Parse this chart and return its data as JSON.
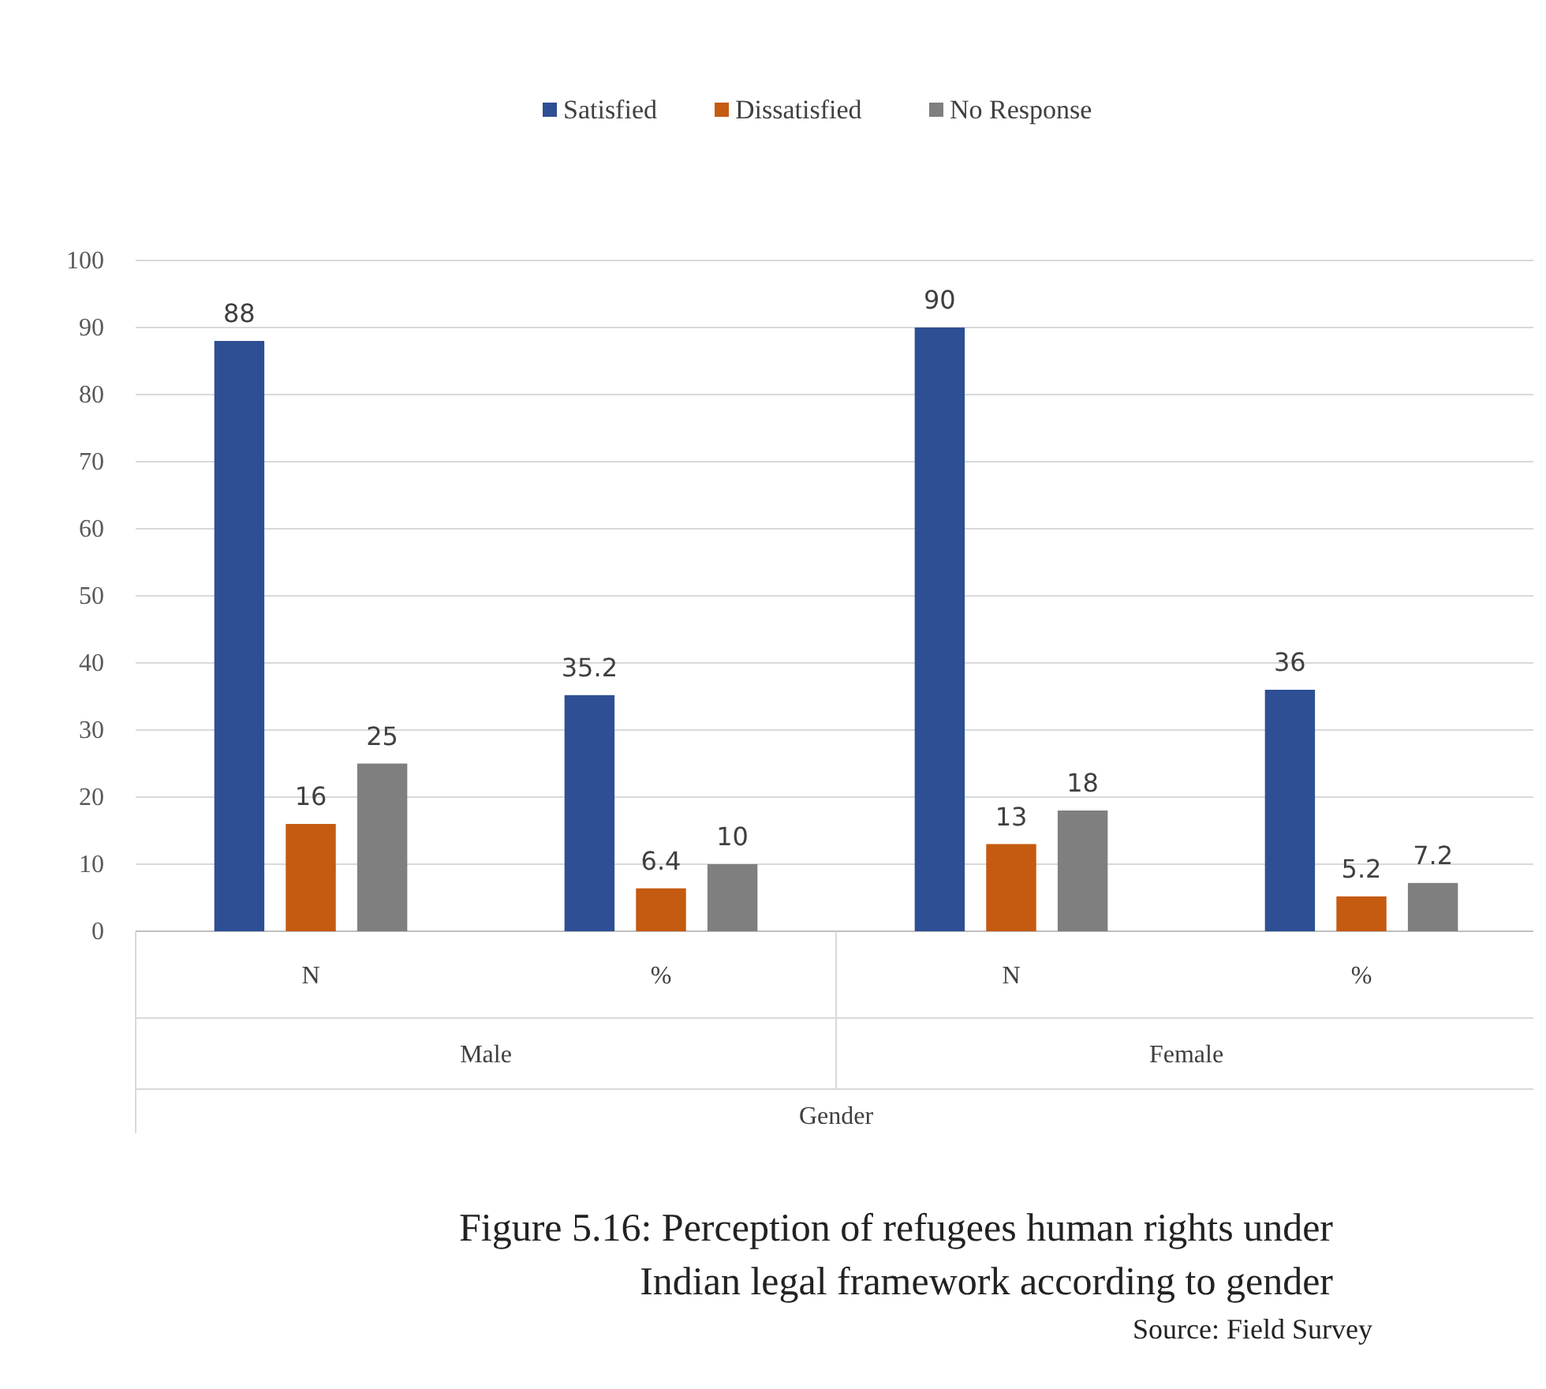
{
  "chart_data": {
    "type": "bar",
    "title": "Figure 5.16: Perception of refugees human rights under Indian legal framework according to gender",
    "xlabel": "Gender",
    "categories": [
      "N",
      "%",
      "N",
      "%"
    ],
    "series": [
      {
        "name": "Satisfied",
        "color": "#2e4f94",
        "values": [
          88,
          35.2,
          90,
          36
        ]
      },
      {
        "name": "Dissatisfied",
        "color": "#c55a11",
        "values": [
          16,
          6.4,
          13,
          5.2
        ]
      },
      {
        "name": "No Response",
        "color": "#7f7f7f",
        "values": [
          25,
          10,
          18,
          7.2
        ]
      }
    ],
    "ylim": [
      0,
      100
    ],
    "yticks": [
      0,
      10,
      20,
      30,
      40,
      50,
      60,
      70,
      80,
      90,
      100
    ],
    "grid": "y",
    "legend": "top",
    "data_labels": true,
    "annotations": [
      "Male",
      "Female",
      "Source: Field Survey"
    ]
  }
}
